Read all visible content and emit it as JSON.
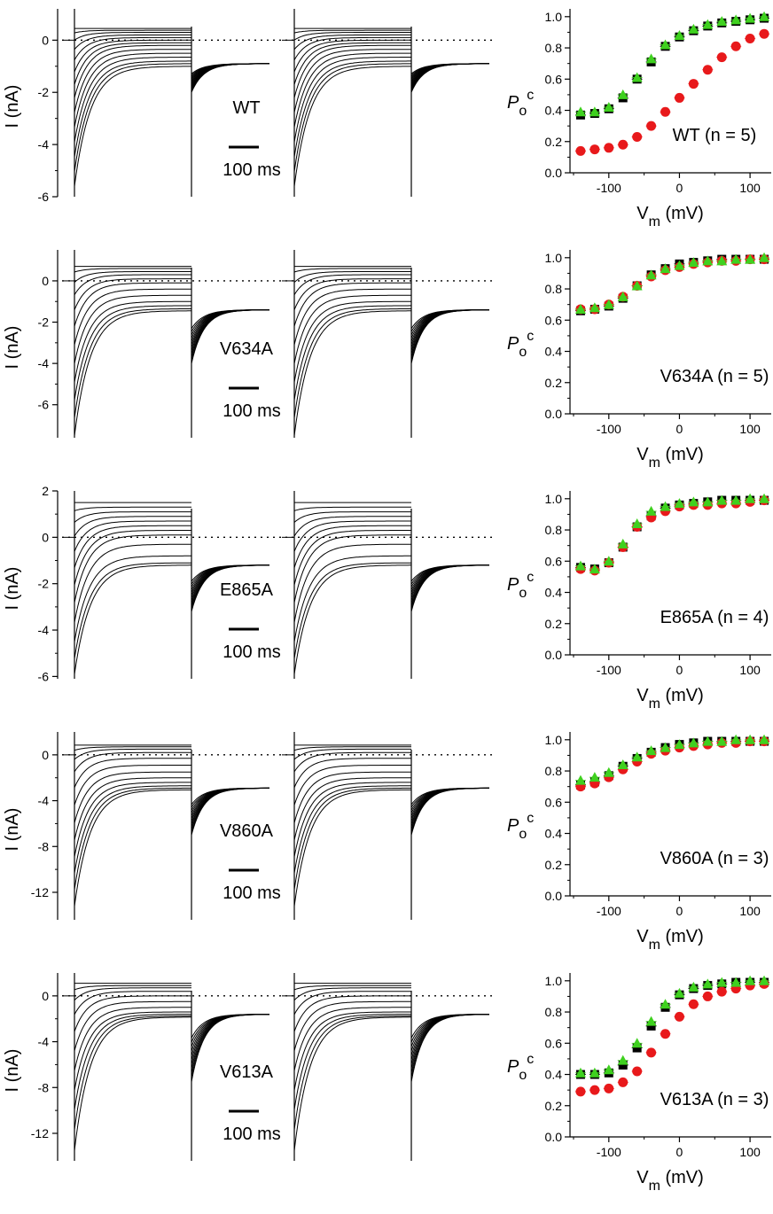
{
  "scale_bar_label": "100 ms",
  "current_axis_label": "I (nA)",
  "po_axis_label": {
    "main": "P",
    "sub": "o",
    "sup": "c"
  },
  "vm_axis_label": {
    "main": "V",
    "sub": "m",
    "unit": "(mV)"
  },
  "series_colors": {
    "black": "#000000",
    "red": "#e8191b",
    "green": "#3fd11f"
  },
  "panels": [
    {
      "name": "WT",
      "trace_label": "WT",
      "chart_label": "WT (n = 5)",
      "current_axis": {
        "ticks": [
          0,
          -2,
          -4,
          -6
        ],
        "tick_labels": [
          "0",
          "-2",
          "-4",
          "-6"
        ],
        "range": [
          -6,
          1.2
        ]
      },
      "trace_params": {
        "pre_levels": [
          0.45,
          0.38,
          0.3,
          0.2,
          0.1,
          0.0,
          -0.1,
          -0.2,
          -0.35,
          -0.5,
          -0.65,
          -0.8,
          -0.9,
          -1.0
        ],
        "tail_ss": -0.9,
        "peak": -5.6,
        "tail_peak": -2.0
      },
      "chart_data": {
        "type": "scatter",
        "x": [
          -140,
          -120,
          -100,
          -80,
          -60,
          -40,
          -20,
          0,
          20,
          40,
          60,
          80,
          100,
          120
        ],
        "xlim": [
          -155,
          130
        ],
        "ylim": [
          0,
          1.05
        ],
        "series": [
          {
            "color": "black",
            "marker": "square",
            "values": [
              0.37,
              0.38,
              0.41,
              0.48,
              0.6,
              0.71,
              0.81,
              0.87,
              0.91,
              0.94,
              0.96,
              0.97,
              0.98,
              0.99
            ]
          },
          {
            "color": "red",
            "marker": "circle",
            "values": [
              0.14,
              0.15,
              0.16,
              0.18,
              0.23,
              0.3,
              0.39,
              0.48,
              0.57,
              0.66,
              0.74,
              0.81,
              0.86,
              0.89
            ]
          },
          {
            "color": "green",
            "marker": "triangle",
            "values": [
              0.39,
              0.39,
              0.42,
              0.5,
              0.61,
              0.73,
              0.82,
              0.88,
              0.92,
              0.95,
              0.97,
              0.98,
              0.99,
              1.0
            ]
          }
        ]
      }
    },
    {
      "name": "V634A",
      "trace_label": "V634A",
      "chart_label": "V634A (n = 5)",
      "current_axis": {
        "ticks": [
          0,
          -2,
          -4,
          -6
        ],
        "tick_labels": [
          "0",
          "-2",
          "-4",
          "-6"
        ],
        "range": [
          -7.6,
          1.5
        ]
      },
      "trace_params": {
        "pre_levels": [
          0.7,
          0.6,
          0.45,
          0.3,
          0.1,
          -0.1,
          -0.4,
          -0.7,
          -1.0,
          -1.2,
          -1.35,
          -1.45
        ],
        "tail_ss": -1.4,
        "peak": -7.5,
        "tail_peak": -4.0
      },
      "chart_data": {
        "type": "scatter",
        "x": [
          -140,
          -120,
          -100,
          -80,
          -60,
          -40,
          -20,
          0,
          20,
          40,
          60,
          80,
          100,
          120
        ],
        "xlim": [
          -155,
          130
        ],
        "ylim": [
          0,
          1.05
        ],
        "series": [
          {
            "color": "black",
            "marker": "square",
            "values": [
              0.66,
              0.67,
              0.69,
              0.74,
              0.82,
              0.89,
              0.93,
              0.96,
              0.97,
              0.98,
              0.99,
              0.99,
              0.99,
              0.99
            ]
          },
          {
            "color": "red",
            "marker": "circle",
            "values": [
              0.67,
              0.67,
              0.7,
              0.75,
              0.82,
              0.88,
              0.92,
              0.94,
              0.96,
              0.97,
              0.98,
              0.98,
              0.99,
              0.99
            ]
          },
          {
            "color": "green",
            "marker": "triangle",
            "values": [
              0.67,
              0.68,
              0.7,
              0.75,
              0.82,
              0.89,
              0.93,
              0.95,
              0.97,
              0.98,
              0.98,
              0.99,
              0.99,
              1.0
            ]
          }
        ]
      }
    },
    {
      "name": "E865A",
      "trace_label": "E865A",
      "chart_label": "E865A (n = 4)",
      "current_axis": {
        "ticks": [
          2,
          0,
          -2,
          -4,
          -6
        ],
        "tick_labels": [
          "2",
          "0",
          "-2",
          "-4",
          "-6"
        ],
        "range": [
          -6.1,
          2.0
        ]
      },
      "trace_params": {
        "pre_levels": [
          1.5,
          1.3,
          1.1,
          0.9,
          0.7,
          0.5,
          0.3,
          0.1,
          -0.3,
          -0.8,
          -1.1,
          -1.2
        ],
        "tail_ss": -1.2,
        "peak": -5.9,
        "tail_peak": -3.2
      },
      "chart_data": {
        "type": "scatter",
        "x": [
          -140,
          -120,
          -100,
          -80,
          -60,
          -40,
          -20,
          0,
          20,
          40,
          60,
          80,
          100,
          120
        ],
        "xlim": [
          -155,
          130
        ],
        "ylim": [
          0,
          1.05
        ],
        "series": [
          {
            "color": "black",
            "marker": "square",
            "values": [
              0.56,
              0.55,
              0.59,
              0.69,
              0.82,
              0.89,
              0.94,
              0.96,
              0.97,
              0.98,
              0.99,
              0.99,
              0.99,
              0.99
            ]
          },
          {
            "color": "red",
            "marker": "circle",
            "values": [
              0.55,
              0.54,
              0.59,
              0.69,
              0.82,
              0.88,
              0.92,
              0.95,
              0.96,
              0.96,
              0.97,
              0.97,
              0.98,
              0.99
            ]
          },
          {
            "color": "green",
            "marker": "triangle",
            "values": [
              0.57,
              0.55,
              0.6,
              0.71,
              0.84,
              0.92,
              0.95,
              0.97,
              0.98,
              0.98,
              0.99,
              0.99,
              1.0,
              1.0
            ]
          }
        ]
      }
    },
    {
      "name": "V860A",
      "trace_label": "V860A",
      "chart_label": "V860A (n = 3)",
      "current_axis": {
        "ticks": [
          0,
          -4,
          -8,
          -12
        ],
        "tick_labels": [
          "0",
          "-4",
          "-8",
          "-12"
        ],
        "range": [
          -14.4,
          2.0
        ]
      },
      "trace_params": {
        "pre_levels": [
          0.85,
          0.7,
          0.5,
          0.2,
          -0.3,
          -0.9,
          -1.5,
          -2.0,
          -2.4,
          -2.7,
          -2.9,
          -3.05
        ],
        "tail_ss": -2.9,
        "peak": -13.2,
        "tail_peak": -7.0
      },
      "chart_data": {
        "type": "scatter",
        "x": [
          -140,
          -120,
          -100,
          -80,
          -60,
          -40,
          -20,
          0,
          20,
          40,
          60,
          80,
          100,
          120
        ],
        "xlim": [
          -155,
          130
        ],
        "ylim": [
          0,
          1.05
        ],
        "series": [
          {
            "color": "black",
            "marker": "square",
            "values": [
              0.71,
              0.73,
              0.77,
              0.83,
              0.88,
              0.92,
              0.95,
              0.97,
              0.98,
              0.99,
              0.99,
              0.99,
              0.99,
              0.99
            ]
          },
          {
            "color": "red",
            "marker": "circle",
            "values": [
              0.7,
              0.72,
              0.76,
              0.81,
              0.86,
              0.91,
              0.93,
              0.95,
              0.96,
              0.97,
              0.98,
              0.98,
              0.99,
              0.99
            ]
          },
          {
            "color": "green",
            "marker": "triangle",
            "values": [
              0.74,
              0.76,
              0.79,
              0.84,
              0.89,
              0.93,
              0.95,
              0.97,
              0.98,
              0.99,
              0.99,
              1.0,
              1.0,
              1.0
            ]
          }
        ]
      }
    },
    {
      "name": "V613A",
      "trace_label": "V613A",
      "chart_label": "V613A (n = 3)",
      "current_axis": {
        "ticks": [
          0,
          -4,
          -8,
          -12
        ],
        "tick_labels": [
          "0",
          "-4",
          "-8",
          "-12"
        ],
        "range": [
          -14.4,
          2.0
        ]
      },
      "trace_params": {
        "pre_levels": [
          1.1,
          0.9,
          0.7,
          0.4,
          0.0,
          -0.5,
          -1.0,
          -1.4,
          -1.6,
          -1.75,
          -1.85
        ],
        "tail_ss": -1.6,
        "peak": -13.5,
        "tail_peak": -7.5
      },
      "chart_data": {
        "type": "scatter",
        "x": [
          -140,
          -120,
          -100,
          -80,
          -60,
          -40,
          -20,
          0,
          20,
          40,
          60,
          80,
          100,
          120
        ],
        "xlim": [
          -155,
          130
        ],
        "ylim": [
          0,
          1.05
        ],
        "series": [
          {
            "color": "black",
            "marker": "square",
            "values": [
              0.4,
              0.4,
              0.41,
              0.46,
              0.57,
              0.71,
              0.83,
              0.91,
              0.95,
              0.97,
              0.98,
              0.99,
              0.99,
              0.99
            ]
          },
          {
            "color": "red",
            "marker": "circle",
            "values": [
              0.29,
              0.3,
              0.31,
              0.35,
              0.42,
              0.54,
              0.66,
              0.77,
              0.85,
              0.9,
              0.93,
              0.95,
              0.97,
              0.98
            ]
          },
          {
            "color": "green",
            "marker": "triangle",
            "values": [
              0.41,
              0.41,
              0.43,
              0.49,
              0.6,
              0.74,
              0.85,
              0.92,
              0.96,
              0.98,
              0.99,
              0.99,
              1.0,
              1.0
            ]
          }
        ]
      }
    }
  ],
  "chart_axes": {
    "y_ticks": [
      0.0,
      0.2,
      0.4,
      0.6,
      0.8,
      1.0
    ],
    "y_tick_labels": [
      "0.0",
      "0.2",
      "0.4",
      "0.6",
      "0.8",
      "1.0"
    ],
    "x_ticks": [
      -100,
      0,
      100
    ],
    "x_tick_labels": [
      "-100",
      "0",
      "100"
    ]
  }
}
